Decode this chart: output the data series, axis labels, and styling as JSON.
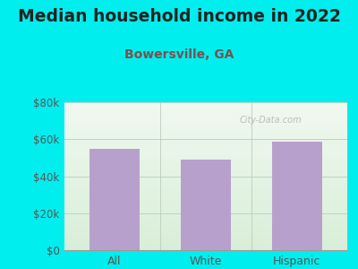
{
  "title": "Median household income in 2022",
  "subtitle": "Bowersville, GA",
  "categories": [
    "All",
    "White",
    "Hispanic"
  ],
  "values": [
    55000,
    49000,
    58500
  ],
  "bar_color": "#b8a0cc",
  "background_color": "#00EEEE",
  "title_color": "#222222",
  "subtitle_color": "#7a5050",
  "tick_color": "#555555",
  "ylim": [
    0,
    80000
  ],
  "yticks": [
    0,
    20000,
    40000,
    60000,
    80000
  ],
  "ytick_labels": [
    "$0",
    "$20k",
    "$40k",
    "$60k",
    "$80k"
  ],
  "watermark": "City-Data.com",
  "title_fontsize": 13.5,
  "subtitle_fontsize": 10,
  "tick_fontsize": 8.5
}
